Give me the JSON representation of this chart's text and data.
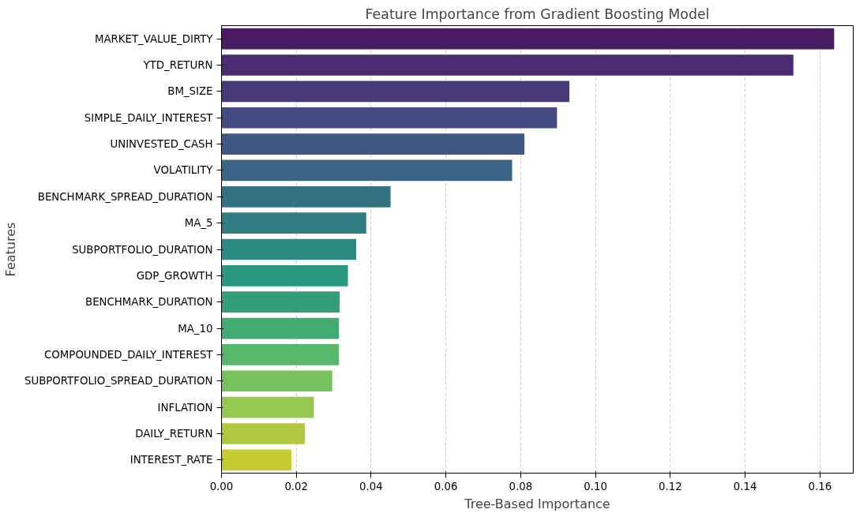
{
  "chart_data": {
    "type": "bar",
    "orientation": "horizontal",
    "title": "Feature Importance from Gradient Boosting Model",
    "xlabel": "Tree-Based Importance",
    "ylabel": "Features",
    "categories": [
      "MARKET_VALUE_DIRTY",
      "YTD_RETURN",
      "BM_SIZE",
      "SIMPLE_DAILY_INTEREST",
      "UNINVESTED_CASH",
      "VOLATILITY",
      "BENCHMARK_SPREAD_DURATION",
      "MA_5",
      "SUBPORTFOLIO_DURATION",
      "GDP_GROWTH",
      "BENCHMARK_DURATION",
      "MA_10",
      "COMPOUNDED_DAILY_INTEREST",
      "SUBPORTFOLIO_SPREAD_DURATION",
      "INFLATION",
      "DAILY_RETURN",
      "INTEREST_RATE"
    ],
    "values": [
      0.1638,
      0.1529,
      0.093,
      0.0897,
      0.081,
      0.0777,
      0.0452,
      0.0387,
      0.036,
      0.0338,
      0.0316,
      0.0314,
      0.0314,
      0.0296,
      0.0247,
      0.0223,
      0.0187
    ],
    "colors": [
      "#4a1c63",
      "#4b2b72",
      "#47397a",
      "#444a82",
      "#3f5884",
      "#3a6584",
      "#347283",
      "#2f7e84",
      "#2b8a82",
      "#2a977f",
      "#339f7a",
      "#43ab72",
      "#58b76a",
      "#77c25f",
      "#95c94f",
      "#b0c840",
      "#c8cc33"
    ],
    "xlim": [
      0,
      0.1689
    ],
    "xticks": [
      {
        "value": 0,
        "label": "0.00"
      },
      {
        "value": 0.02,
        "label": "0.02"
      },
      {
        "value": 0.04,
        "label": "0.04"
      },
      {
        "value": 0.06,
        "label": "0.06"
      },
      {
        "value": 0.08,
        "label": "0.08"
      },
      {
        "value": 0.1,
        "label": "0.10"
      },
      {
        "value": 0.12,
        "label": "0.12"
      },
      {
        "value": 0.14,
        "label": "0.14"
      },
      {
        "value": 0.16,
        "label": "0.16"
      }
    ],
    "grid": "x"
  }
}
